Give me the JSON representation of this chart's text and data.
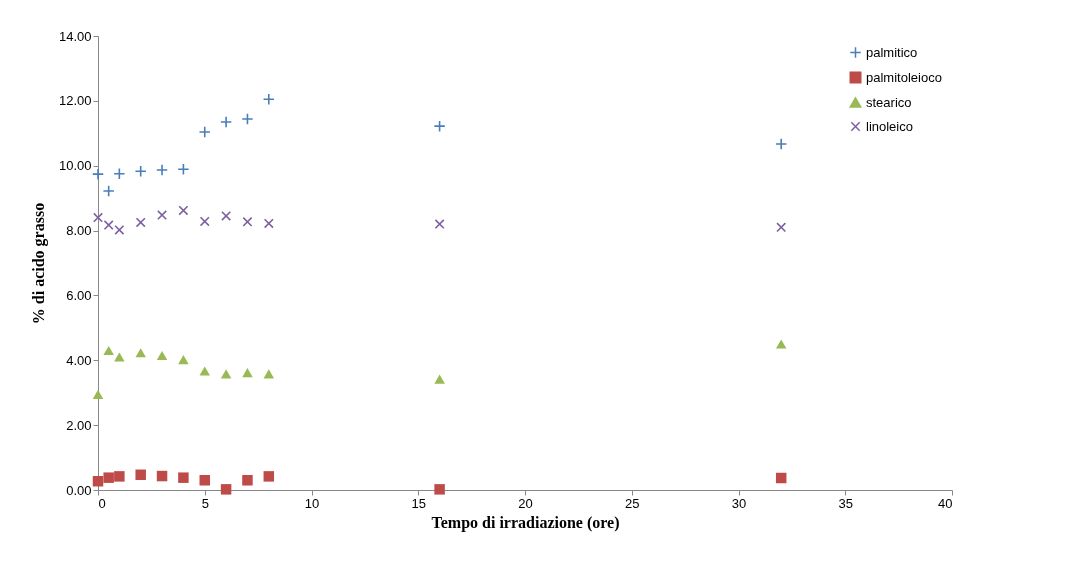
{
  "chart_data": {
    "type": "scatter",
    "xlabel": "Tempo di irradiazione (ore)",
    "ylabel": "% di acido grasso",
    "x": [
      0,
      0.5,
      1,
      2,
      3,
      4,
      5,
      6,
      7,
      8,
      16,
      32
    ],
    "series": [
      {
        "name": "palmitico",
        "color": "#4a7ebb",
        "marker": "cross",
        "values": [
          9.74,
          9.22,
          9.75,
          9.83,
          9.87,
          9.89,
          11.04,
          11.35,
          11.44,
          12.05,
          11.22,
          10.67
        ]
      },
      {
        "name": "palmitoleioco",
        "color": "#be4b48",
        "marker": "square",
        "values": [
          0.27,
          0.38,
          0.42,
          0.47,
          0.43,
          0.38,
          0.3,
          0.02,
          0.3,
          0.42,
          0.02,
          0.37
        ]
      },
      {
        "name": "stearico",
        "color": "#98b954",
        "marker": "triangle",
        "values": [
          2.95,
          4.3,
          4.1,
          4.23,
          4.15,
          4.02,
          3.67,
          3.58,
          3.62,
          3.58,
          3.42,
          4.5
        ]
      },
      {
        "name": "linoleico",
        "color": "#7d60a0",
        "marker": "x",
        "values": [
          8.4,
          8.17,
          8.02,
          8.25,
          8.48,
          8.62,
          8.28,
          8.45,
          8.27,
          8.22,
          8.2,
          8.1
        ]
      }
    ],
    "xlim": [
      0,
      40
    ],
    "xticks": [
      0,
      5,
      10,
      15,
      20,
      25,
      30,
      35,
      40
    ],
    "ylim": [
      0,
      14
    ],
    "yticks": [
      {
        "value": 0,
        "label": "0.00"
      },
      {
        "value": 2,
        "label": "2.00"
      },
      {
        "value": 4,
        "label": "4.00"
      },
      {
        "value": 6,
        "label": "6.00"
      },
      {
        "value": 8,
        "label": "8.00"
      },
      {
        "value": 10,
        "label": "10.00"
      },
      {
        "value": 12,
        "label": "12.00"
      },
      {
        "value": 14,
        "label": "14.00"
      }
    ],
    "grid": false,
    "legend": "top right"
  }
}
